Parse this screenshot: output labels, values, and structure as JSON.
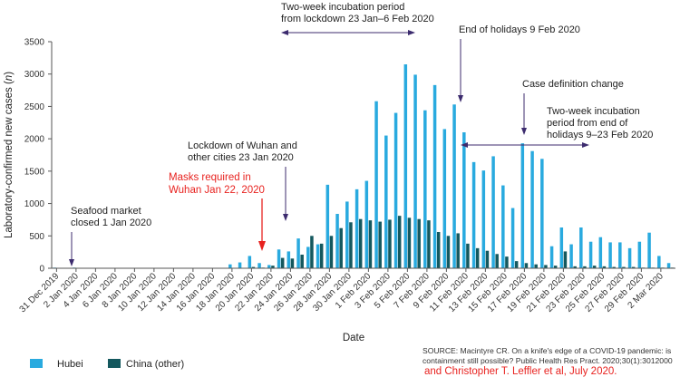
{
  "chart_data": {
    "type": "bar",
    "xlabel": "Date",
    "ylabel": "Laboratory-confirmed new cases (n)",
    "ylim": [
      0,
      3500
    ],
    "yticks": [
      0,
      500,
      1000,
      1500,
      2000,
      2500,
      3000,
      3500
    ],
    "grid": false,
    "legend_position": "bottom-left",
    "series_colors": {
      "Hubei": "#29aadf",
      "China (other)": "#14585e"
    },
    "categories": [
      "31 Dec 2019",
      "1 Jan 2020",
      "2 Jan 2020",
      "3 Jan 2020",
      "4 Jan 2020",
      "5 Jan 2020",
      "6 Jan 2020",
      "7 Jan 2020",
      "8 Jan 2020",
      "9 Jan 2020",
      "10 Jan 2020",
      "11 Jan 2020",
      "12 Jan 2020",
      "13 Jan 2020",
      "14 Jan 2020",
      "15 Jan 2020",
      "16 Jan 2020",
      "17 Jan 2020",
      "18 Jan 2020",
      "19 Jan 2020",
      "20 Jan 2020",
      "21 Jan 2020",
      "22 Jan 2020",
      "23 Jan 2020",
      "24 Jan 2020",
      "25 Jan 2020",
      "26 Jan 2020",
      "27 Jan 2020",
      "28 Jan 2020",
      "29 Jan 2020",
      "30 Jan 2020",
      "31 Jan 2020",
      "1 Feb 2020",
      "2 Feb 2020",
      "3 Feb 2020",
      "4 Feb 2020",
      "5 Feb 2020",
      "6 Feb 2020",
      "7 Feb 2020",
      "8 Feb 2020",
      "9 Feb 2020",
      "10 Feb 2020",
      "11 Feb 2020",
      "12 Feb 2020",
      "13 Feb 2020",
      "14 Feb 2020",
      "15 Feb 2020",
      "16 Feb 2020",
      "17 Feb 2020",
      "18 Feb 2020",
      "19 Feb 2020",
      "20 Feb 2020",
      "21 Feb 2020",
      "22 Feb 2020",
      "23 Feb 2020",
      "24 Feb 2020",
      "25 Feb 2020",
      "26 Feb 2020",
      "27 Feb 2020",
      "28 Feb 2020",
      "29 Feb 2020",
      "1 Mar 2020",
      "2 Mar 2020",
      "3 Mar 2020"
    ],
    "tick_labels": [
      "31 Dec 2019",
      "2 Jan 2020",
      "4 Jan 2020",
      "6 Jan 2020",
      "8 Jan 2020",
      "10 Jan 2020",
      "12 Jan 2020",
      "14 Jan 2020",
      "16 Jan 2020",
      "18 Jan 2020",
      "20 Jan 2020",
      "22 Jan 2020",
      "24 Jan 2020",
      "26 Jan 2020",
      "28 Jan 2020",
      "30 Jan 2020",
      "1 Feb 2020",
      "3 Feb 2020",
      "5 Feb 2020",
      "7 Feb 2020",
      "9 Feb 2020",
      "11 Feb 2020",
      "13 Feb 2020",
      "15 Feb 2020",
      "17 Feb 2020",
      "19 Feb 2020",
      "21 Feb 2020",
      "23 Feb 2020",
      "25 Feb 2020",
      "27 Feb 2020",
      "29 Feb 2020",
      "2 Mar 2020"
    ],
    "series": [
      {
        "name": "Hubei",
        "values": [
          10,
          0,
          10,
          0,
          0,
          0,
          5,
          0,
          0,
          0,
          0,
          0,
          0,
          0,
          5,
          0,
          5,
          0,
          60,
          90,
          190,
          80,
          50,
          290,
          260,
          460,
          330,
          370,
          1290,
          840,
          1030,
          1220,
          1350,
          2580,
          2050,
          2400,
          3150,
          2990,
          2440,
          2830,
          2150,
          2530,
          2100,
          1640,
          1510,
          1730,
          1280,
          930,
          1930,
          1810,
          1690,
          340,
          630,
          370,
          630,
          410,
          480,
          400,
          400,
          310,
          410,
          550,
          190,
          80
        ]
      },
      {
        "name": "China (other)",
        "values": [
          0,
          0,
          0,
          0,
          0,
          0,
          0,
          0,
          0,
          0,
          0,
          0,
          0,
          0,
          0,
          0,
          0,
          0,
          0,
          0,
          20,
          10,
          40,
          160,
          150,
          210,
          500,
          380,
          500,
          620,
          710,
          760,
          740,
          720,
          750,
          810,
          780,
          760,
          740,
          560,
          500,
          540,
          380,
          310,
          270,
          220,
          180,
          110,
          80,
          60,
          50,
          40,
          260,
          30,
          30,
          40,
          30,
          20,
          20,
          20,
          10,
          10,
          10,
          10
        ]
      }
    ],
    "annotations": {
      "seafood": [
        "Seafood market",
        "closed 1 Jan 2020"
      ],
      "masks": [
        "Masks required in",
        "Wuhan Jan 22, 2020"
      ],
      "lockdown": [
        "Lockdown of Wuhan and",
        "other cities 23 Jan 2020"
      ],
      "incubation1": [
        "Two-week incubation period",
        "from lockdown 23 Jan–6 Feb 2020"
      ],
      "holidays_end": "End of holidays 9 Feb 2020",
      "case_definition": "Case definition change",
      "incubation2": [
        "Two-week incubation",
        "period from end of",
        "holidays 9–23 Feb 2020"
      ]
    },
    "source": {
      "line1": "SOURCE:  Macintyre CR. On a knife's edge of a COVID-19 pandemic: is",
      "line2": "containment still possible? Public Health Res Pract. 2020;30(1):3012000",
      "line3": "and Christopher T. Leffler et al, July 2020."
    }
  }
}
